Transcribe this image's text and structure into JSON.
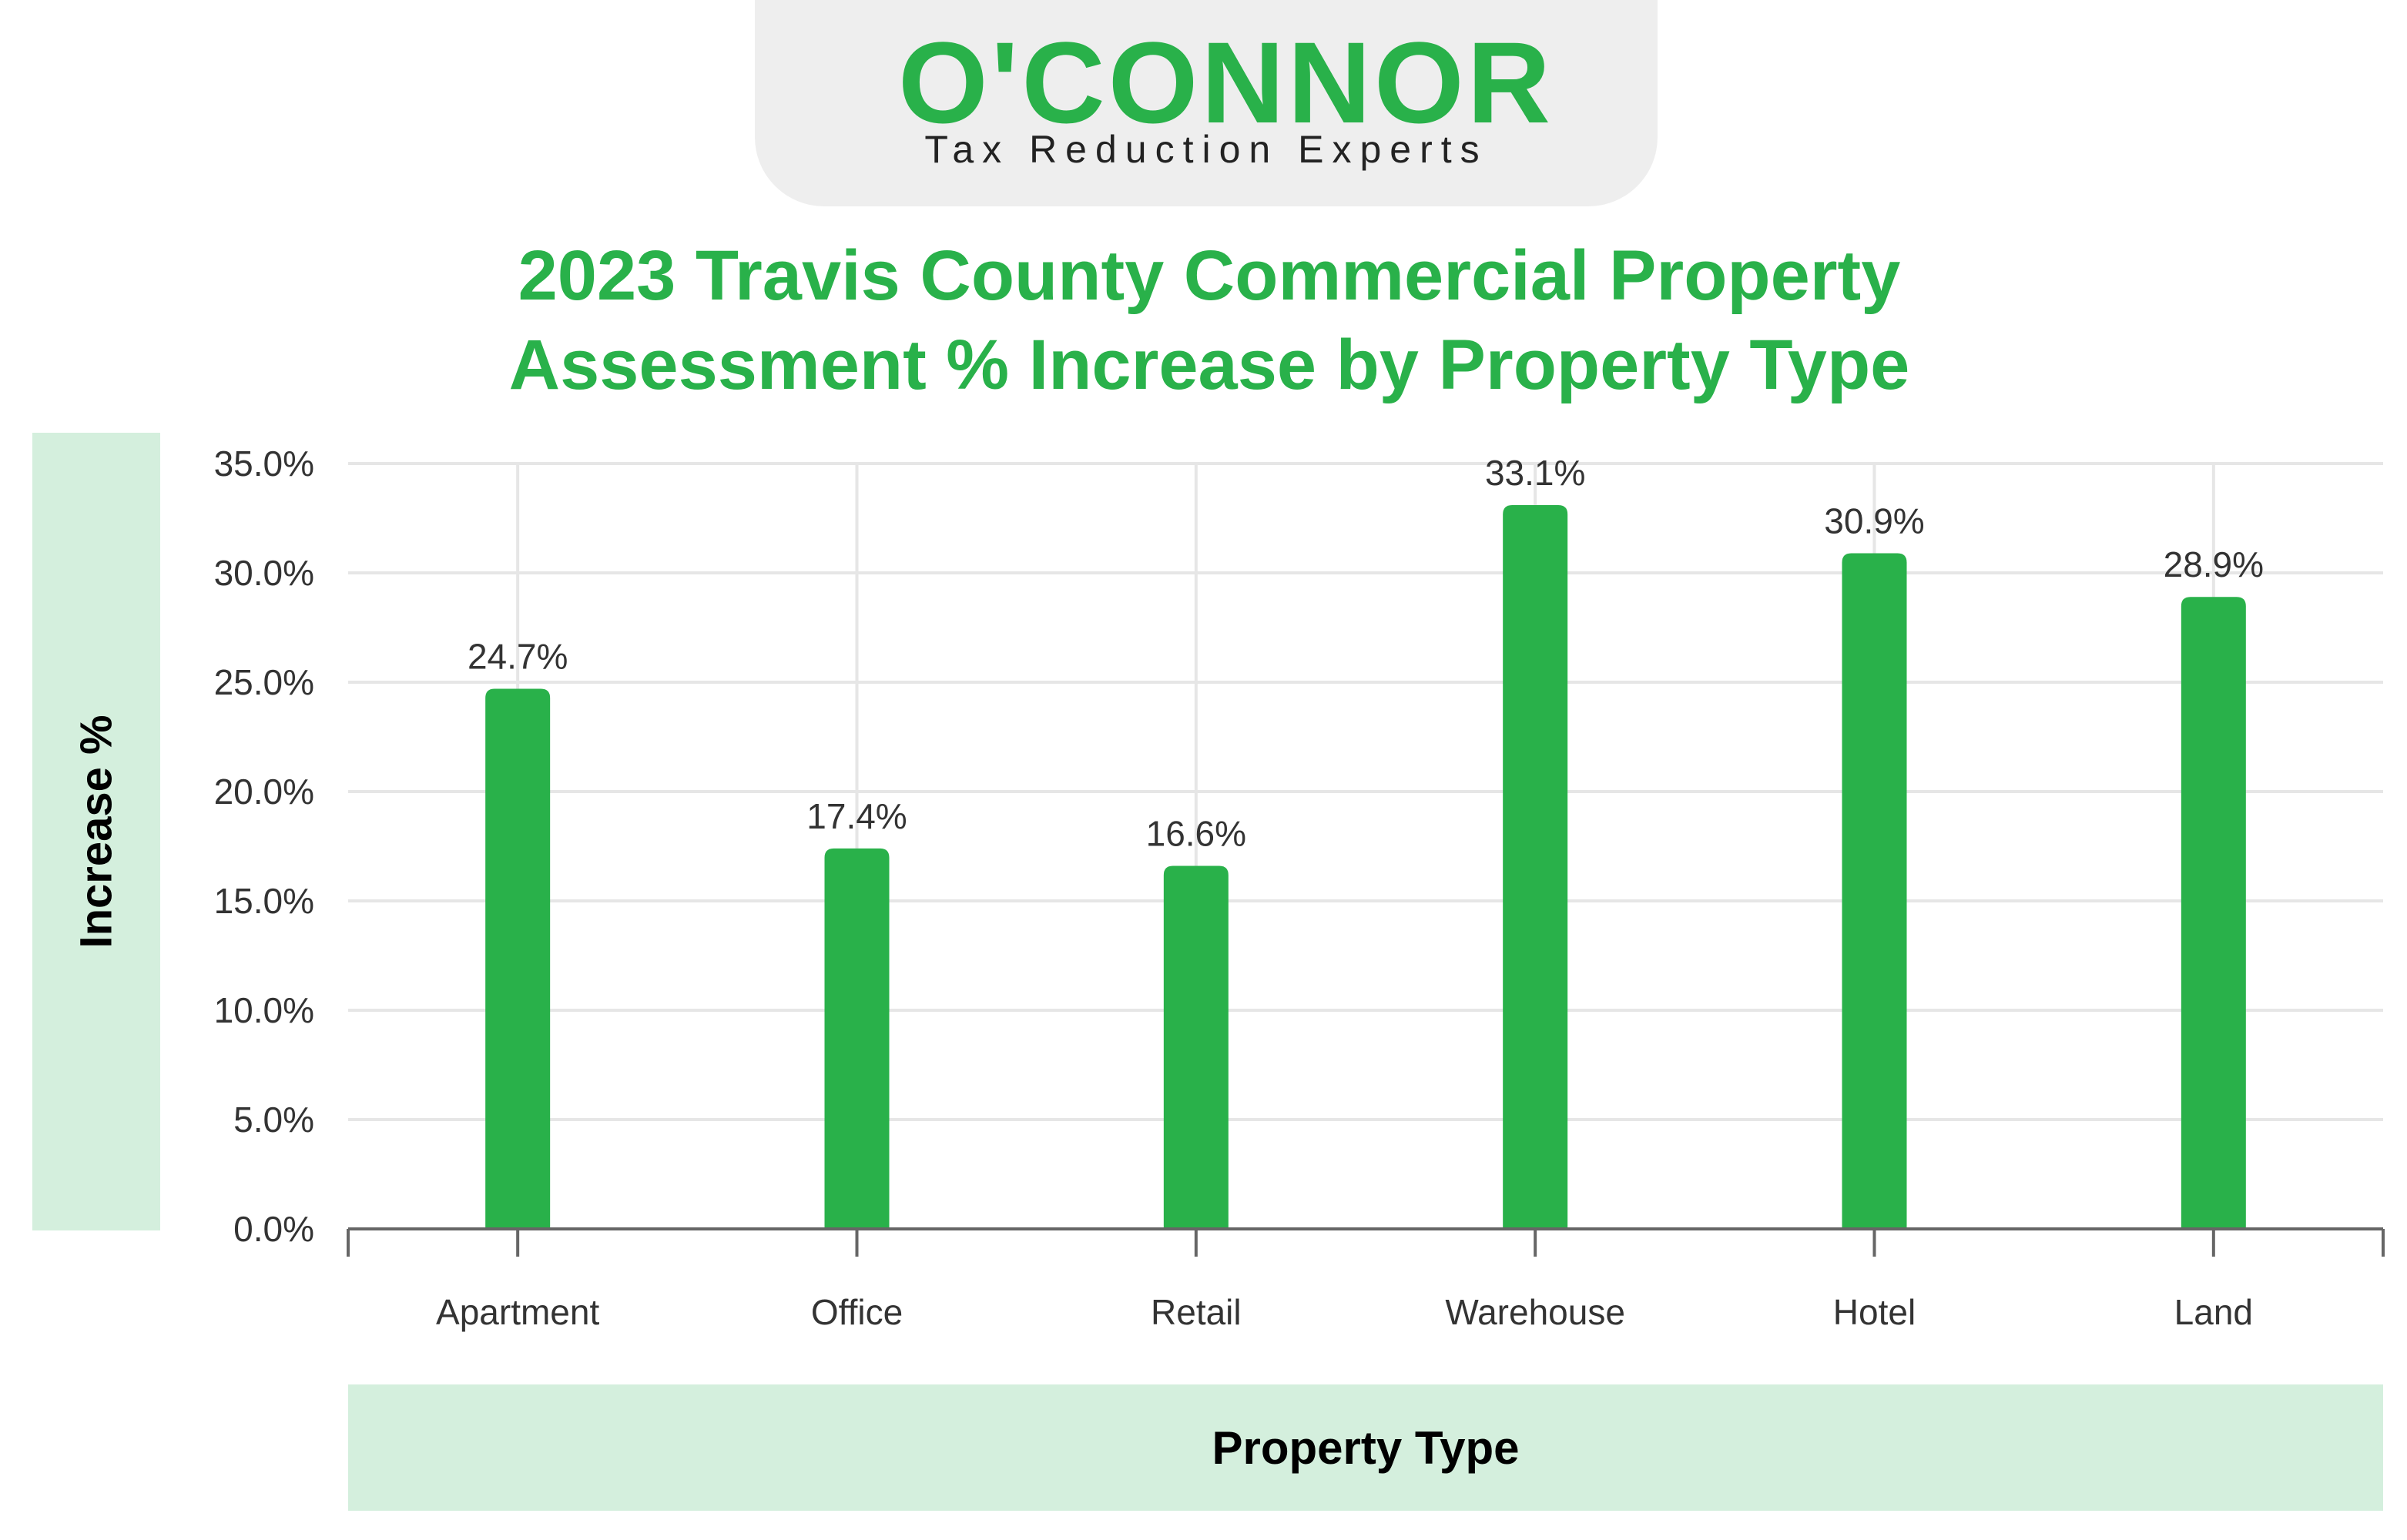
{
  "logo": {
    "name": "O'CONNOR",
    "tagline": "Tax Reduction Experts"
  },
  "colors": {
    "accent": "#29b14a",
    "label_band": "#d4efdd",
    "logo_tab": "#eeeeee"
  },
  "chart_data": {
    "type": "bar",
    "title_lines": [
      "2023 Travis County Commercial Property",
      "Assessment % Increase by Property Type"
    ],
    "title": "2023 Travis County Commercial Property Assessment % Increase by Property Type",
    "xlabel": "Property Type",
    "ylabel": "Increase %",
    "categories": [
      "Apartment",
      "Office",
      "Retail",
      "Warehouse",
      "Hotel",
      "Land"
    ],
    "values": [
      24.7,
      17.4,
      16.6,
      33.1,
      30.9,
      28.9
    ],
    "data_labels": [
      "24.7%",
      "17.4%",
      "16.6%",
      "33.1%",
      "30.9%",
      "28.9%"
    ],
    "ylim": [
      0,
      35
    ],
    "yticks": [
      0,
      5,
      10,
      15,
      20,
      25,
      30,
      35
    ],
    "ytick_labels": [
      "0.0%",
      "5.0%",
      "10.0%",
      "15.0%",
      "20.0%",
      "25.0%",
      "30.0%",
      "35.0%"
    ],
    "grid": true,
    "legend": "none",
    "bar_color": "#29b14a"
  }
}
